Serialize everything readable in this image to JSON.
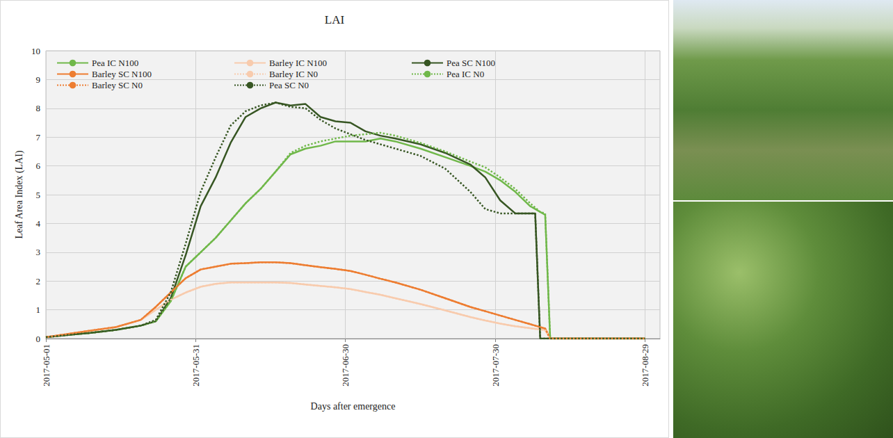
{
  "chart_data": {
    "type": "line",
    "title": "LAI",
    "x_label": "Days after emergence",
    "y_label": "Leaf Area Index (LAI)",
    "x": [
      "2017-05-01",
      "2017-05-05",
      "2017-05-10",
      "2017-05-15",
      "2017-05-20",
      "2017-05-23",
      "2017-05-26",
      "2017-05-29",
      "2017-06-01",
      "2017-06-04",
      "2017-06-07",
      "2017-06-10",
      "2017-06-13",
      "2017-06-16",
      "2017-06-19",
      "2017-06-22",
      "2017-06-25",
      "2017-06-28",
      "2017-07-01",
      "2017-07-04",
      "2017-07-07",
      "2017-07-10",
      "2017-07-15",
      "2017-07-20",
      "2017-07-25",
      "2017-07-28",
      "2017-07-31",
      "2017-08-03",
      "2017-08-06",
      "2017-08-07",
      "2017-08-08",
      "2017-08-09",
      "2017-08-10",
      "2017-08-15",
      "2017-08-20",
      "2017-08-25",
      "2017-08-29"
    ],
    "xlim": [
      "2017-05-01",
      "2017-09-01"
    ],
    "xticks": [
      "2017-05-01",
      "2017-05-31",
      "2017-06-30",
      "2017-07-30",
      "2017-08-29"
    ],
    "ylim": [
      0,
      10
    ],
    "yticks": [
      0,
      1,
      2,
      3,
      4,
      5,
      6,
      7,
      8,
      9,
      10
    ],
    "grid": true,
    "legend": "upper left",
    "series": [
      {
        "name": "Pea IC N100",
        "color": "#70b84a",
        "line_style": "solid",
        "values": [
          0.05,
          0.12,
          0.2,
          0.3,
          0.45,
          0.6,
          1.3,
          2.5,
          3.0,
          3.5,
          4.1,
          4.7,
          5.2,
          5.8,
          6.4,
          6.6,
          6.7,
          6.85,
          6.85,
          6.85,
          6.95,
          6.85,
          6.6,
          6.3,
          6.0,
          5.8,
          5.5,
          5.1,
          4.6,
          4.5,
          4.4,
          4.3,
          0,
          0,
          0,
          0,
          0
        ]
      },
      {
        "name": "Barley IC N100",
        "color": "#f8cbad",
        "line_style": "solid",
        "values": [
          0.05,
          0.15,
          0.28,
          0.4,
          0.65,
          1.0,
          1.35,
          1.6,
          1.8,
          1.9,
          1.95,
          1.95,
          1.95,
          1.95,
          1.93,
          1.88,
          1.83,
          1.78,
          1.72,
          1.62,
          1.52,
          1.4,
          1.2,
          0.98,
          0.75,
          0.63,
          0.52,
          0.43,
          0.36,
          0.34,
          0.32,
          0.3,
          0,
          0,
          0,
          0,
          0
        ]
      },
      {
        "name": "Pea SC N100",
        "color": "#375623",
        "line_style": "solid",
        "values": [
          0.05,
          0.12,
          0.2,
          0.3,
          0.45,
          0.6,
          1.4,
          2.9,
          4.6,
          5.6,
          6.8,
          7.7,
          8.0,
          8.2,
          8.1,
          8.15,
          7.7,
          7.55,
          7.5,
          7.2,
          7.05,
          6.95,
          6.75,
          6.45,
          6.05,
          5.6,
          4.8,
          4.35,
          4.35,
          4.35,
          0,
          0,
          0,
          0,
          0,
          0,
          0
        ]
      },
      {
        "name": "Barley SC N100",
        "color": "#ed7d31",
        "line_style": "solid",
        "values": [
          0.05,
          0.15,
          0.28,
          0.4,
          0.65,
          1.1,
          1.6,
          2.1,
          2.4,
          2.5,
          2.6,
          2.62,
          2.65,
          2.65,
          2.62,
          2.55,
          2.48,
          2.42,
          2.35,
          2.22,
          2.08,
          1.95,
          1.7,
          1.4,
          1.1,
          0.95,
          0.8,
          0.65,
          0.5,
          0.45,
          0.4,
          0.35,
          0,
          0,
          0,
          0,
          0
        ]
      },
      {
        "name": "Barley IC N0",
        "color": "#f8cbad",
        "line_style": "dotted",
        "values": [
          0.05,
          0.15,
          0.28,
          0.4,
          0.65,
          1.0,
          1.35,
          1.6,
          1.8,
          1.9,
          1.95,
          1.95,
          1.95,
          1.95,
          1.93,
          1.88,
          1.83,
          1.78,
          1.72,
          1.62,
          1.52,
          1.4,
          1.2,
          0.98,
          0.75,
          0.63,
          0.52,
          0.43,
          0.36,
          0.34,
          0.32,
          0.3,
          0,
          0,
          0,
          0,
          0
        ]
      },
      {
        "name": "Pea IC N0",
        "color": "#70b84a",
        "line_style": "dotted",
        "values": [
          0.05,
          0.12,
          0.2,
          0.3,
          0.45,
          0.6,
          1.3,
          2.5,
          3.0,
          3.5,
          4.1,
          4.7,
          5.2,
          5.8,
          6.45,
          6.7,
          6.85,
          6.95,
          7.05,
          7.1,
          7.15,
          7.05,
          6.8,
          6.5,
          6.15,
          5.95,
          5.6,
          5.2,
          4.7,
          4.55,
          4.4,
          4.35,
          0,
          0,
          0,
          0,
          0
        ]
      },
      {
        "name": "Barley SC N0",
        "color": "#ed7d31",
        "line_style": "dotted",
        "values": [
          0.05,
          0.15,
          0.28,
          0.4,
          0.65,
          1.1,
          1.6,
          2.1,
          2.4,
          2.5,
          2.6,
          2.62,
          2.65,
          2.65,
          2.62,
          2.55,
          2.48,
          2.42,
          2.35,
          2.22,
          2.08,
          1.95,
          1.7,
          1.4,
          1.1,
          0.95,
          0.8,
          0.65,
          0.5,
          0.45,
          0.4,
          0.35,
          0,
          0,
          0,
          0,
          0
        ]
      },
      {
        "name": "Pea SC N0",
        "color": "#375623",
        "line_style": "dotted",
        "values": [
          0.05,
          0.12,
          0.2,
          0.3,
          0.45,
          0.65,
          1.6,
          3.3,
          5.1,
          6.3,
          7.4,
          7.9,
          8.1,
          8.2,
          8.05,
          8.0,
          7.6,
          7.3,
          7.1,
          6.9,
          6.75,
          6.6,
          6.35,
          5.9,
          5.1,
          4.5,
          4.35,
          4.35,
          4.35,
          4.35,
          0,
          0,
          0,
          0,
          0,
          0,
          0
        ]
      }
    ]
  }
}
